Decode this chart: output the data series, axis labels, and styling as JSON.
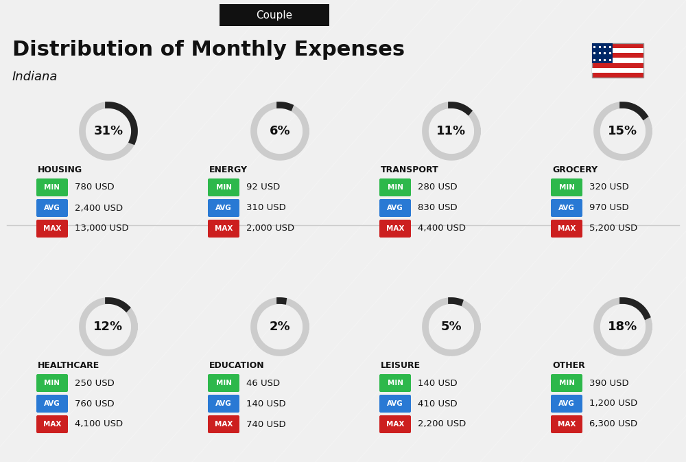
{
  "title": "Distribution of Monthly Expenses",
  "subtitle": "Indiana",
  "header_label": "Couple",
  "bg_color": "#f0f0f0",
  "categories": [
    {
      "name": "HOUSING",
      "pct": 31,
      "min_val": "780 USD",
      "avg_val": "2,400 USD",
      "max_val": "13,000 USD",
      "row": 0,
      "col": 0
    },
    {
      "name": "ENERGY",
      "pct": 6,
      "min_val": "92 USD",
      "avg_val": "310 USD",
      "max_val": "2,000 USD",
      "row": 0,
      "col": 1
    },
    {
      "name": "TRANSPORT",
      "pct": 11,
      "min_val": "280 USD",
      "avg_val": "830 USD",
      "max_val": "4,400 USD",
      "row": 0,
      "col": 2
    },
    {
      "name": "GROCERY",
      "pct": 15,
      "min_val": "320 USD",
      "avg_val": "970 USD",
      "max_val": "5,200 USD",
      "row": 0,
      "col": 3
    },
    {
      "name": "HEALTHCARE",
      "pct": 12,
      "min_val": "250 USD",
      "avg_val": "760 USD",
      "max_val": "4,100 USD",
      "row": 1,
      "col": 0
    },
    {
      "name": "EDUCATION",
      "pct": 2,
      "min_val": "46 USD",
      "avg_val": "140 USD",
      "max_val": "740 USD",
      "row": 1,
      "col": 1
    },
    {
      "name": "LEISURE",
      "pct": 5,
      "min_val": "140 USD",
      "avg_val": "410 USD",
      "max_val": "2,200 USD",
      "row": 1,
      "col": 2
    },
    {
      "name": "OTHER",
      "pct": 18,
      "min_val": "390 USD",
      "avg_val": "1,200 USD",
      "max_val": "6,300 USD",
      "row": 1,
      "col": 3
    }
  ],
  "min_color": "#2db84b",
  "avg_color": "#2979d4",
  "max_color": "#cc1f1f",
  "label_color_white": "#ffffff",
  "text_color": "#111111",
  "circle_color_dark": "#222222",
  "circle_color_light": "#cccccc"
}
